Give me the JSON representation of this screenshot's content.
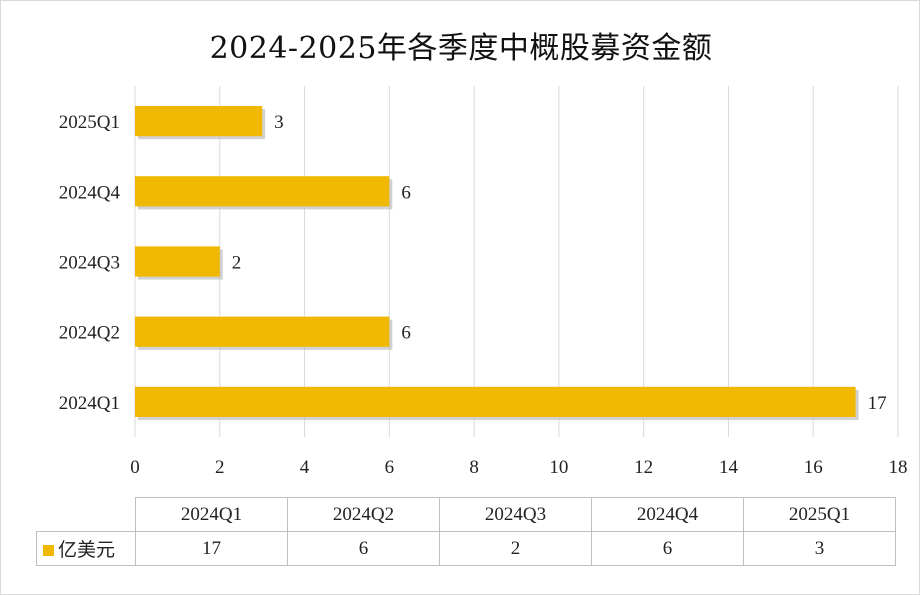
{
  "chart_data": {
    "type": "bar",
    "orientation": "horizontal",
    "title": "2024-2025年各季度中概股募资金额",
    "categories": [
      "2024Q1",
      "2024Q2",
      "2024Q3",
      "2024Q4",
      "2025Q1"
    ],
    "series": [
      {
        "name": "亿美元",
        "values": [
          17,
          6,
          2,
          6,
          3
        ],
        "color": "#F0B800"
      }
    ],
    "xlim": [
      0,
      18
    ],
    "x_ticks": [
      "0",
      "2",
      "4",
      "6",
      "8",
      "10",
      "12",
      "14",
      "16",
      "18"
    ],
    "data_labels": [
      "17",
      "6",
      "2",
      "6",
      "3"
    ],
    "grid": true,
    "data_table": {
      "headers": [
        "2024Q1",
        "2024Q2",
        "2024Q3",
        "2024Q4",
        "2025Q1"
      ],
      "row_label": "亿美元",
      "row_values": [
        "17",
        "6",
        "2",
        "6",
        "3"
      ]
    }
  }
}
